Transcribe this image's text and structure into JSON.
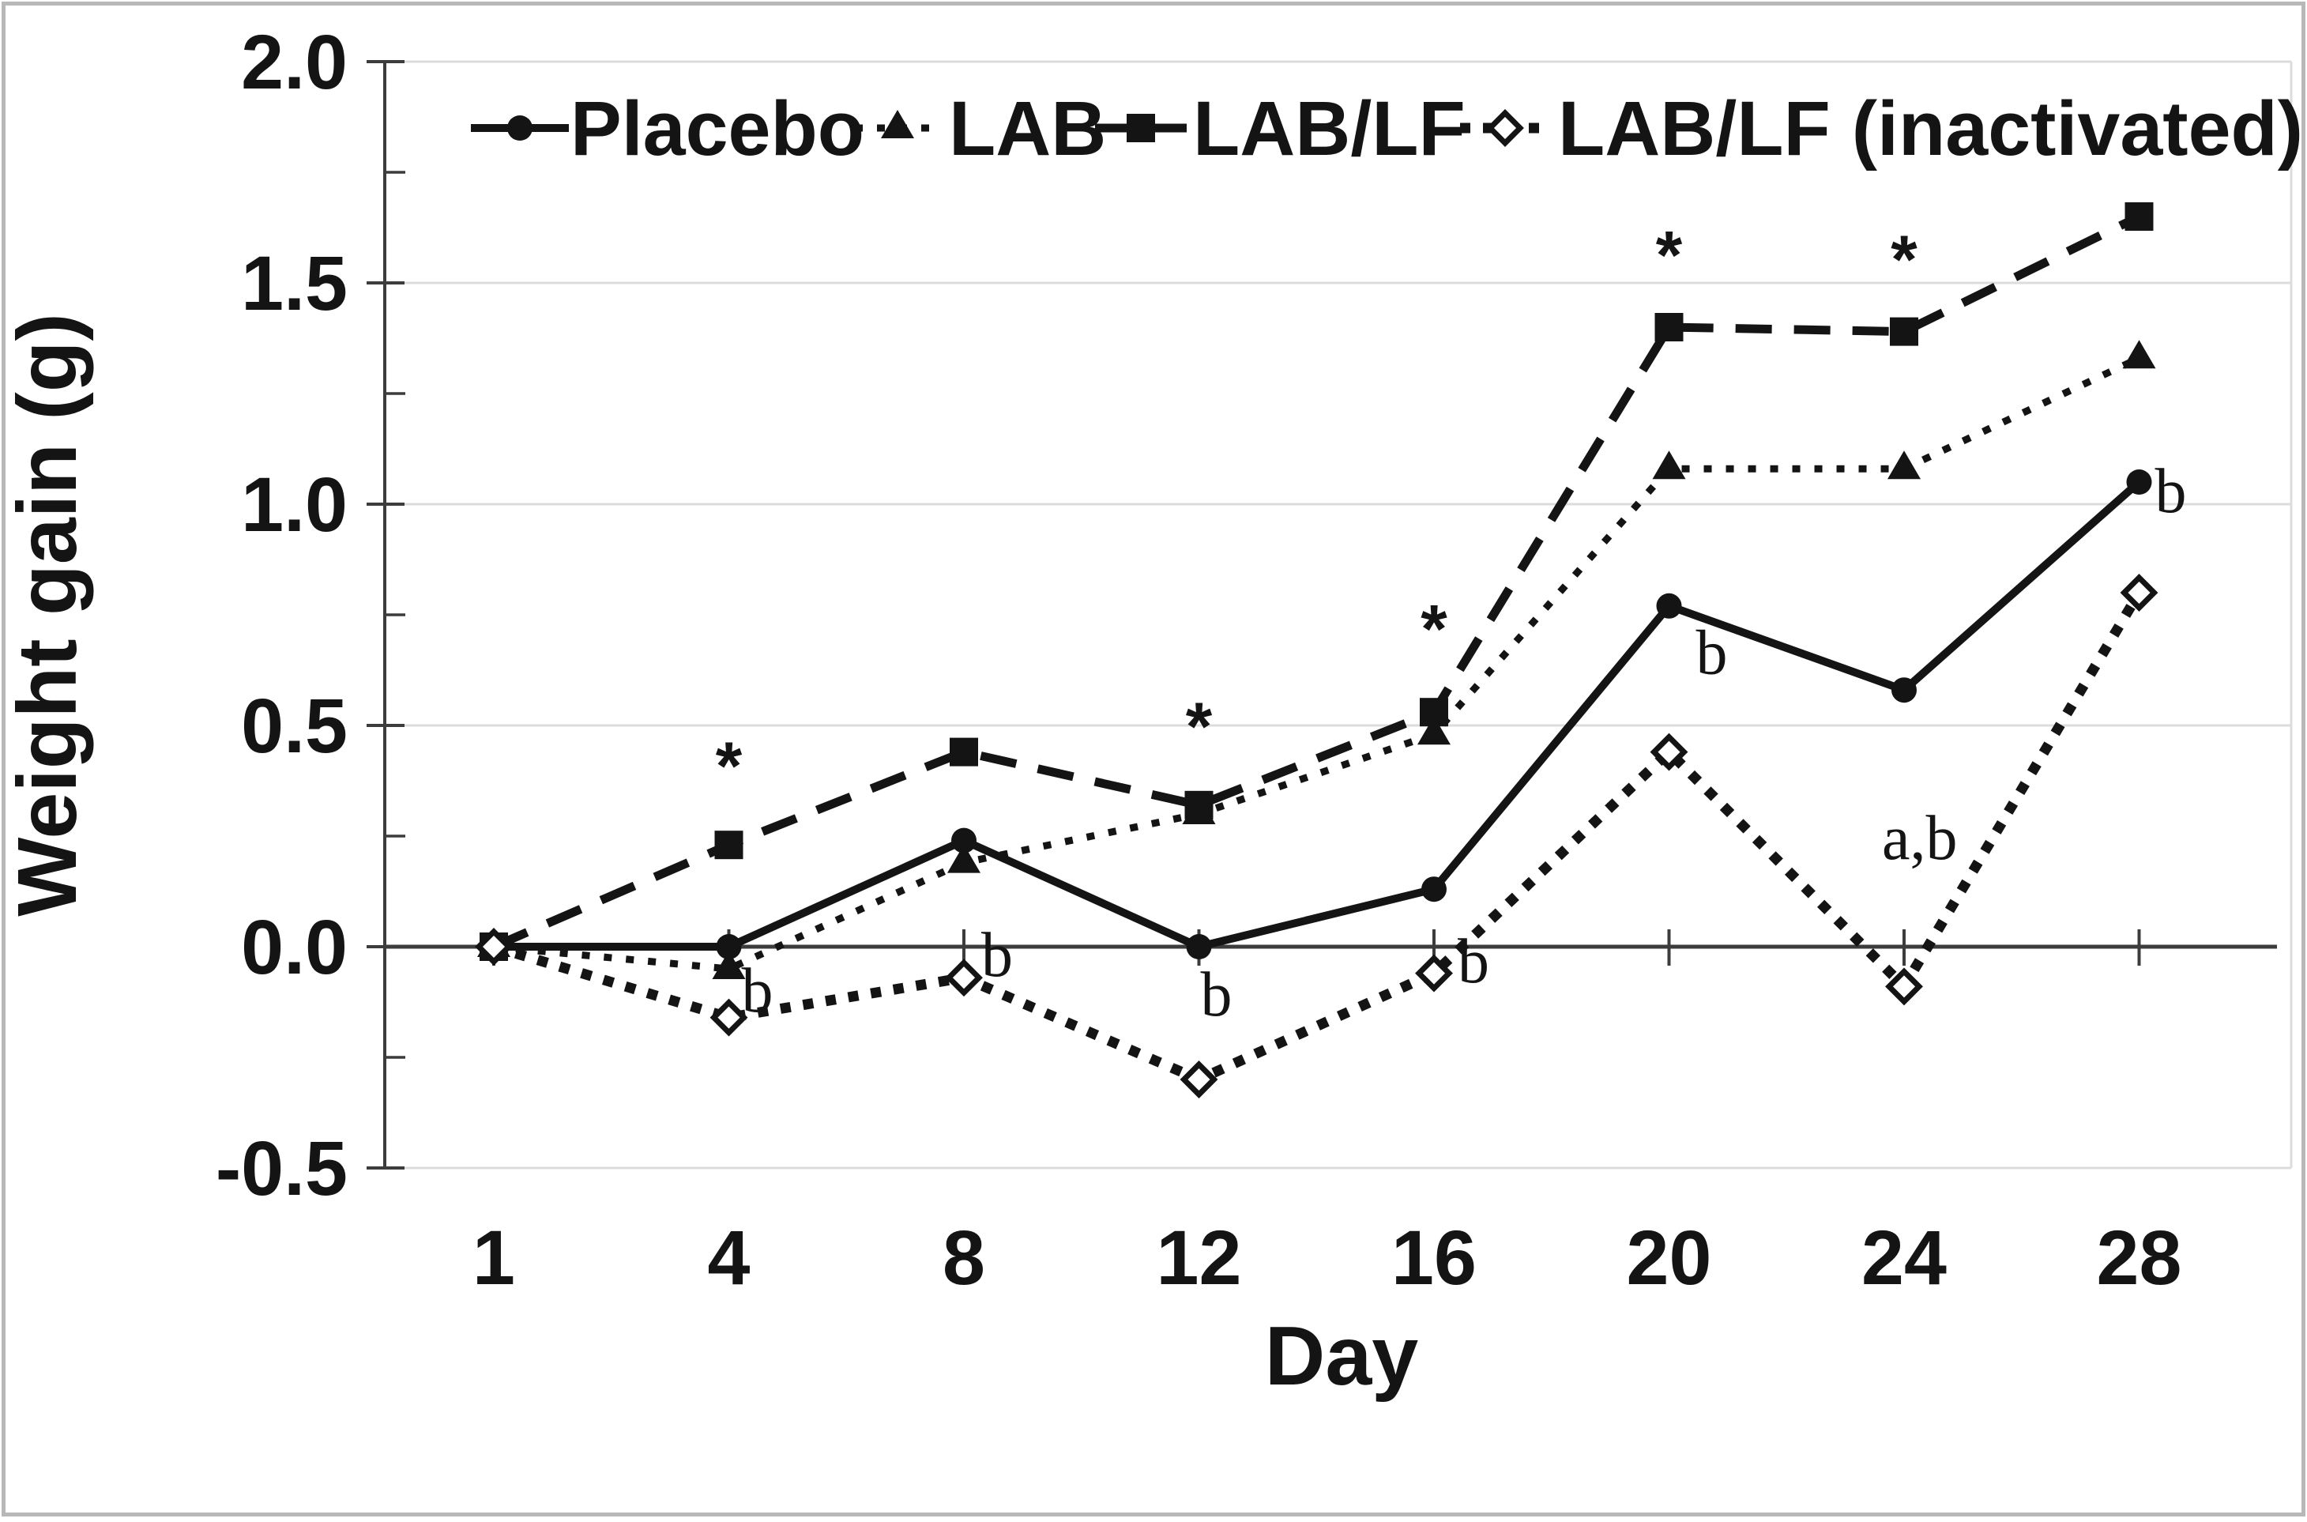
{
  "figure": {
    "background": "#ffffff",
    "border_color": "#b8b8b8"
  },
  "colors": {
    "ink": "#141414",
    "axis": "#3c3c3c",
    "grid": "#dcdcdc",
    "star": "#6e6e6e",
    "letter": "#101010",
    "marker_open_fill": "#ffffff"
  },
  "chart_data": {
    "type": "line",
    "title": "",
    "xlabel": "Day",
    "ylabel": "Weight gain (g)",
    "x_values": [
      1,
      4,
      8,
      12,
      16,
      20,
      24,
      28
    ],
    "x_tick_labels": [
      "1",
      "4",
      "8",
      "12",
      "16",
      "20",
      "24",
      "28"
    ],
    "ylim": [
      -0.5,
      2.0
    ],
    "y_major_ticks": [
      -0.5,
      0.0,
      0.5,
      1.0,
      1.5,
      2.0
    ],
    "y_tick_labels": [
      "-0.5",
      "0.0",
      "0.5",
      "1.0",
      "1.5",
      "2.0"
    ],
    "y_minor_ticks": [
      -0.25,
      0.25,
      0.75,
      1.25,
      1.75
    ],
    "gridlines_at": [
      0.5,
      1.0,
      1.5
    ],
    "grid": "horizontal light gray, zero axis dark",
    "legend_position": "top inside, single row",
    "series": [
      {
        "name": "Placebo",
        "line": "solid",
        "marker": "filled-circle",
        "values": [
          0.0,
          0.0,
          0.24,
          0.0,
          0.13,
          0.77,
          0.58,
          1.05
        ]
      },
      {
        "name": "LAB",
        "line": "dotted",
        "marker": "filled-triangle",
        "values": [
          0.0,
          -0.05,
          0.19,
          0.3,
          0.48,
          1.08,
          1.08,
          1.33
        ]
      },
      {
        "name": "LAB/LF",
        "line": "dashed",
        "marker": "filled-square",
        "values": [
          0.0,
          0.23,
          0.44,
          0.32,
          0.53,
          1.4,
          1.39,
          1.65
        ]
      },
      {
        "name": "LAB/LF (inactivated)",
        "line": "dotted-heavy",
        "marker": "open-diamond",
        "values": [
          0.0,
          -0.16,
          -0.07,
          -0.3,
          -0.06,
          0.44,
          -0.09,
          0.8
        ]
      }
    ],
    "annotations": {
      "stars": [
        {
          "symbol": "*",
          "day": 4,
          "value": 0.43
        },
        {
          "symbol": "*",
          "day": 12,
          "value": 0.52
        },
        {
          "symbol": "*",
          "day": 16,
          "value": 0.74
        },
        {
          "symbol": "*",
          "day": 20,
          "value": 1.585
        },
        {
          "symbol": "*",
          "day": 24,
          "value": 1.575
        }
      ],
      "letters": [
        {
          "text": "b",
          "day": 4,
          "value": -0.146,
          "dx": 16
        },
        {
          "text": "b",
          "day": 8,
          "value": -0.066,
          "dx": 22
        },
        {
          "text": "b",
          "day": 12,
          "value": -0.155,
          "dx": 2
        },
        {
          "text": "b",
          "day": 16,
          "value": -0.08,
          "dx": 30
        },
        {
          "text": "b",
          "day": 20,
          "value": 0.617,
          "dx": 34
        },
        {
          "text": "a,b",
          "day": 24,
          "value": 0.198,
          "dx": -28
        },
        {
          "text": "b",
          "day": 28,
          "value": 0.982,
          "dx": 20
        }
      ]
    }
  }
}
